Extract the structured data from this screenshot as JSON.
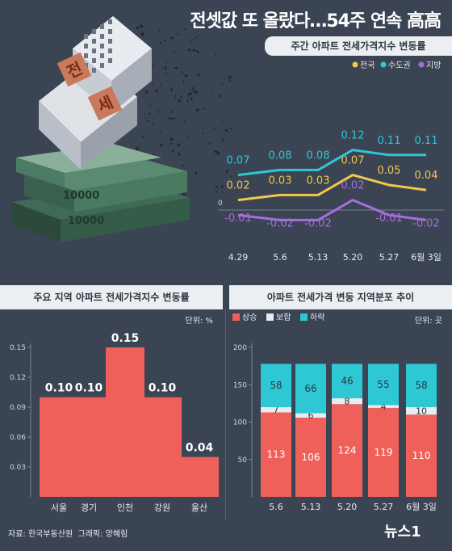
{
  "headline": "전셋값 또 올랐다…54주 연속 高高",
  "footer": {
    "source": "자료: 한국부동산원",
    "graphic": "그래픽: 양혜림"
  },
  "logo_text": "뉴스1",
  "illustration": {
    "stamp_chars": [
      "전",
      "세"
    ],
    "banknote_value": "10000"
  },
  "colors": {
    "background": "#3b4453",
    "nationwide": "#f2c84b",
    "capital": "#2ec8d4",
    "regional": "#a86ddd",
    "rise": "#f0605a",
    "flat": "#e9ecef",
    "fall": "#2ec8d4"
  },
  "chart_data": [
    {
      "type": "line",
      "title": "주간 아파트 전세가격지수 변동률",
      "categories": [
        "4.29",
        "5.6",
        "5.13",
        "5.20",
        "5.27",
        "6월 3일"
      ],
      "series": [
        {
          "name": "전국",
          "values": [
            0.02,
            0.03,
            0.03,
            0.07,
            0.05,
            0.04
          ],
          "labels": [
            "0.02",
            "0.03",
            "0.03",
            "0.07",
            "0.05",
            "0.04"
          ]
        },
        {
          "name": "수도권",
          "values": [
            0.07,
            0.08,
            0.08,
            0.12,
            0.11,
            0.11
          ],
          "labels": [
            "0.07",
            "0.08",
            "0.08",
            "0.12",
            "0.11",
            "0.11"
          ]
        },
        {
          "name": "지방",
          "values": [
            -0.01,
            -0.02,
            -0.02,
            0.02,
            -0.01,
            -0.02
          ],
          "labels": [
            "-0.01",
            "-0.02",
            "-0.02",
            "0.02",
            "-0.01",
            "-0.02"
          ]
        }
      ],
      "zero_label": "0",
      "legend_position": "top-right"
    },
    {
      "type": "bar",
      "title": "주요 지역 아파트 전세가격지수 변동률",
      "unit": "단위: %",
      "categories": [
        "서울",
        "경기",
        "인천",
        "강원",
        "울산"
      ],
      "values": [
        0.1,
        0.1,
        0.15,
        0.1,
        0.04
      ],
      "value_labels": [
        "0.10",
        "0.10",
        "0.15",
        "0.10",
        "0.04"
      ],
      "ylim": [
        0,
        0.15
      ],
      "yticks": [
        0.03,
        0.06,
        0.09,
        0.12,
        0.15
      ],
      "ytick_labels": [
        "0.03",
        "0.06",
        "0.09",
        "0.12",
        "0.15"
      ]
    },
    {
      "type": "bar",
      "stacked": true,
      "title": "아파트 전세가격 변동 지역분포 추이",
      "unit": "단위: 곳",
      "categories": [
        "5.6",
        "5.13",
        "5.20",
        "5.27",
        "6월 3일"
      ],
      "series": [
        {
          "name": "상승",
          "values": [
            113,
            106,
            124,
            119,
            110
          ]
        },
        {
          "name": "보합",
          "values": [
            7,
            6,
            8,
            4,
            10
          ]
        },
        {
          "name": "하락",
          "values": [
            58,
            66,
            46,
            55,
            58
          ]
        }
      ],
      "ylim": [
        0,
        200
      ],
      "yticks": [
        50,
        100,
        150,
        200
      ],
      "ytick_labels": [
        "50",
        "100",
        "150",
        "200"
      ],
      "legend_position": "top-left"
    }
  ]
}
